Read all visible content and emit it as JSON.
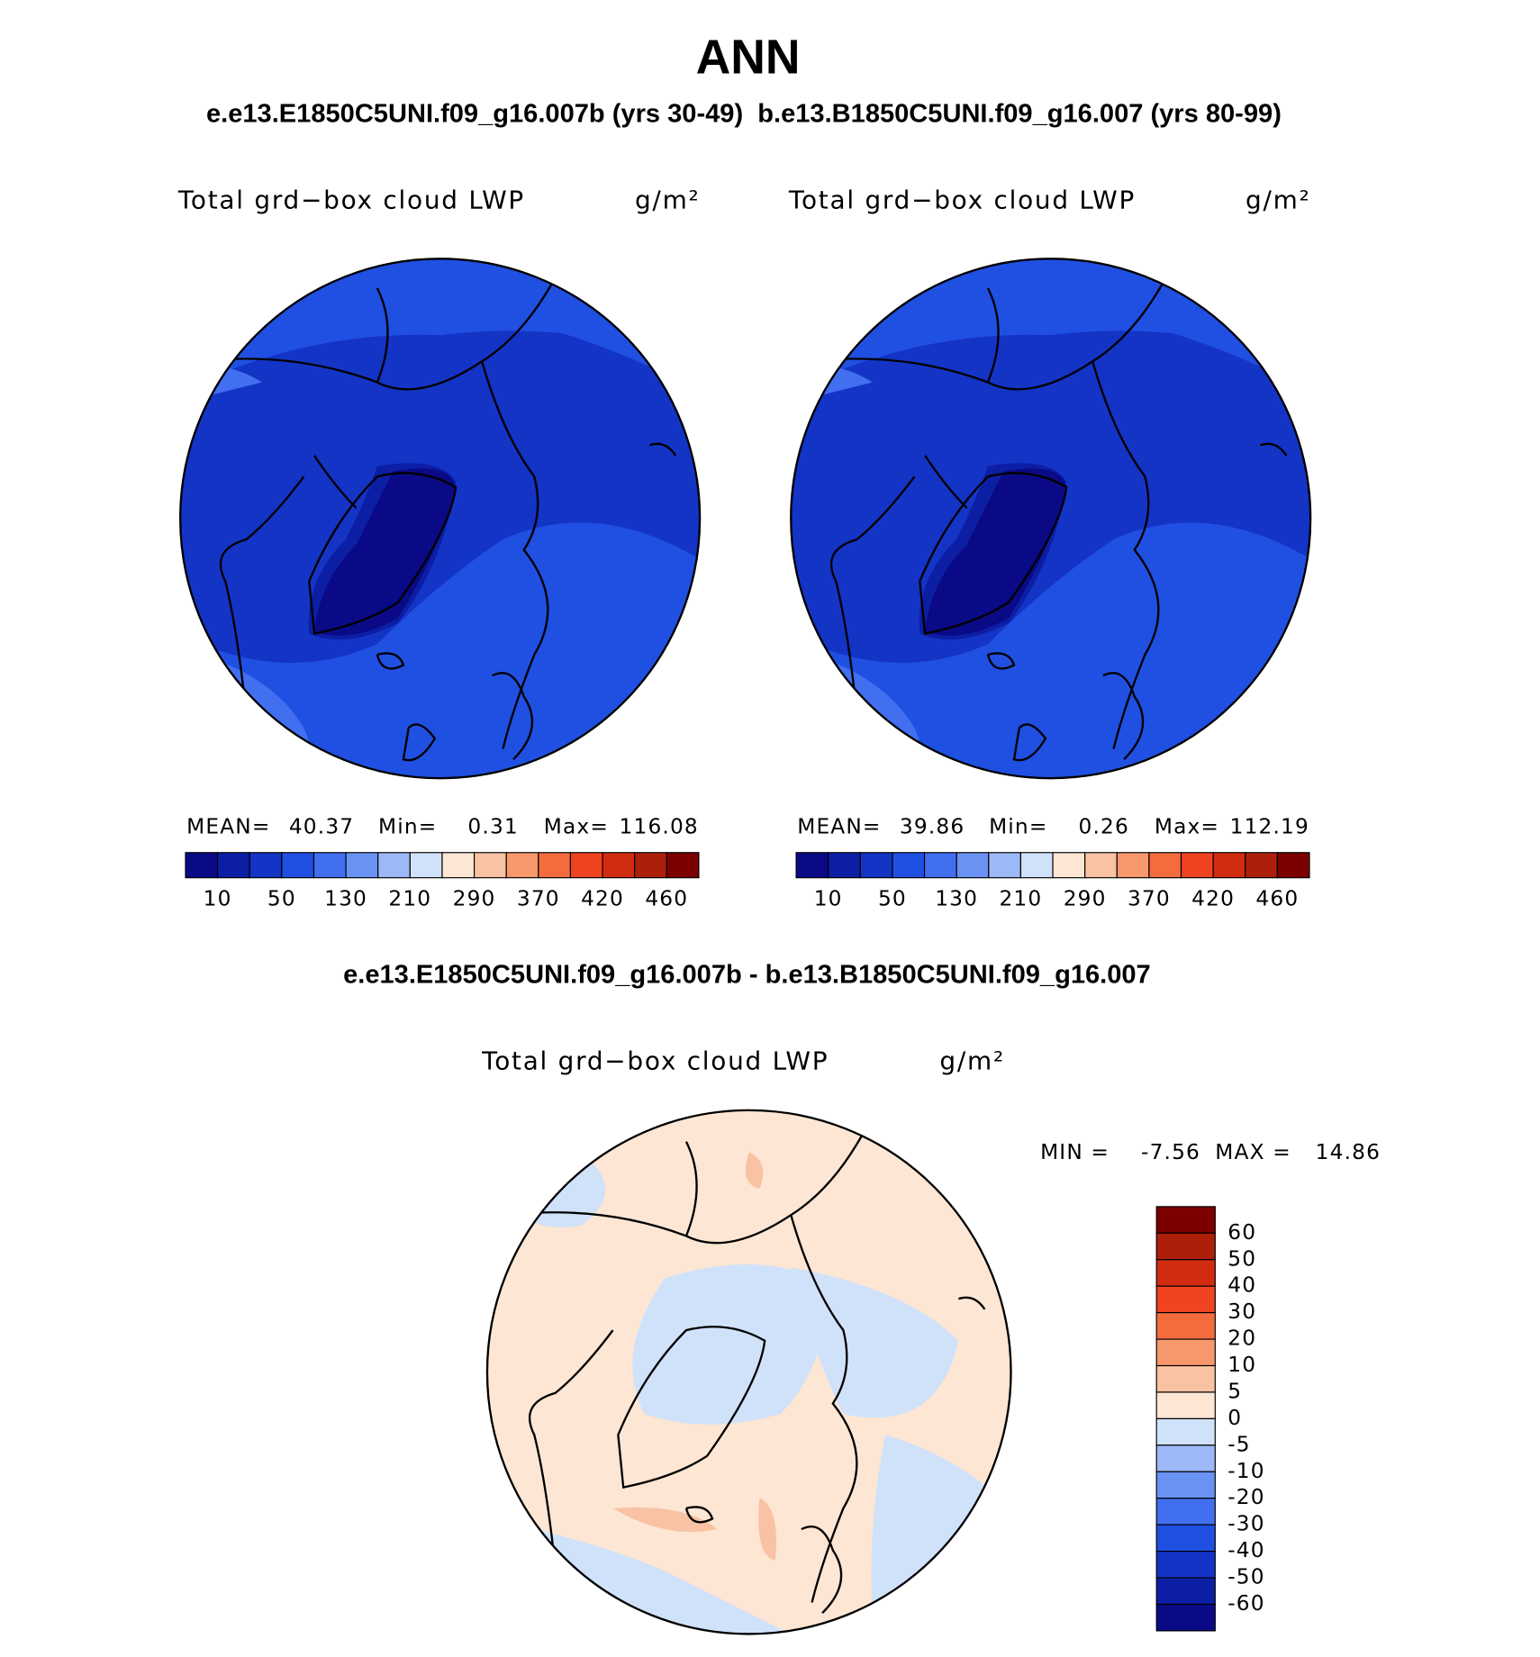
{
  "header": {
    "title": "ANN",
    "subtitle": "e.e13.E1850C5UNI.f09_g16.007b (yrs 30-49)  b.e13.B1850C5UNI.f09_g16.007 (yrs 80-99)"
  },
  "panels": [
    {
      "label": "Total grd−box cloud LWP",
      "unit": "g/m²",
      "mean_label": "MEAN=",
      "mean": 40.37,
      "min_label": "Min=",
      "min": 0.31,
      "max_label": "Max=",
      "max": 116.08
    },
    {
      "label": "Total grd−box cloud LWP",
      "unit": "g/m²",
      "mean_label": "MEAN=",
      "mean": 39.86,
      "min_label": "Min=",
      "min": 0.26,
      "max_label": "Max=",
      "max": 112.19
    }
  ],
  "colorbar": {
    "colors": [
      "#0a0a86",
      "#0c1ea4",
      "#1434c6",
      "#2050e2",
      "#416ff0",
      "#6a92f2",
      "#9db8f6",
      "#d0e2f9",
      "#fde6d3",
      "#f9c2a3",
      "#f6976c",
      "#f46c3e",
      "#f0431f",
      "#d22c10",
      "#ae1f09",
      "#7c0000"
    ],
    "labels": [
      10,
      50,
      130,
      210,
      290,
      370,
      420,
      460
    ]
  },
  "difference": {
    "subtitle": "e.e13.E1850C5UNI.f09_g16.007b - b.e13.B1850C5UNI.f09_g16.007",
    "label": "Total grd−box cloud LWP",
    "unit": "g/m²",
    "min_label": "MIN =",
    "min": -7.56,
    "max_label": "MAX =",
    "max": 14.86,
    "colors": [
      "#7c0000",
      "#ae1f09",
      "#d22c10",
      "#f0431f",
      "#f46c3e",
      "#f6976c",
      "#f9c2a3",
      "#fde6d3",
      "#d0e2f9",
      "#9db8f6",
      "#6a92f2",
      "#416ff0",
      "#2050e2",
      "#1434c6",
      "#0c1ea4",
      "#0a0a86"
    ],
    "labels": [
      60,
      50,
      40,
      30,
      20,
      10,
      5,
      0,
      -5,
      -10,
      -20,
      -30,
      -40,
      -50,
      -60
    ]
  }
}
